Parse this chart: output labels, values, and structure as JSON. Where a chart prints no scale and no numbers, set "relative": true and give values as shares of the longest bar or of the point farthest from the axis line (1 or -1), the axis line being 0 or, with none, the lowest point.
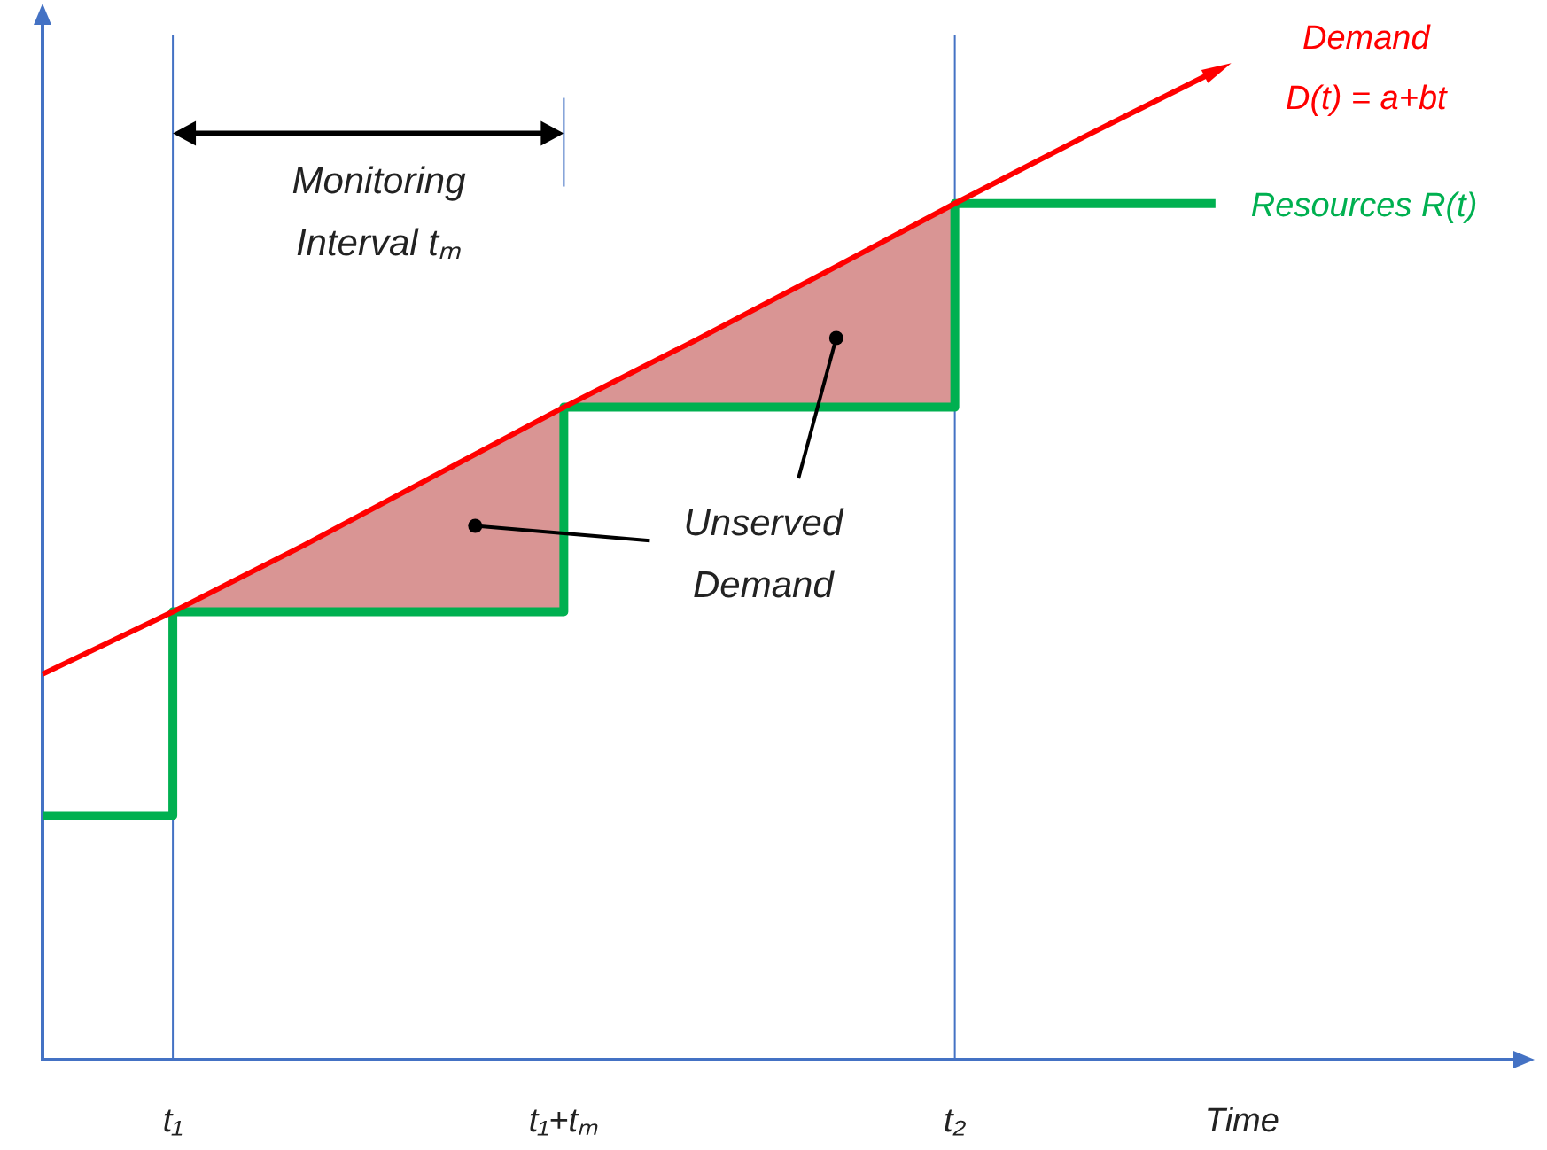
{
  "chart_data": {
    "type": "line",
    "relative": true,
    "xlabel": "Time",
    "categories": [
      null,
      "t₁",
      null,
      null,
      "t₁+tₘ",
      null,
      null,
      "t₂",
      null,
      null,
      null,
      null
    ],
    "series": [
      {
        "name": "Demand D(t) = a+bt",
        "type": "line",
        "color": "#ff0000",
        "values": [
          0.39,
          0.453,
          0.52,
          0.59,
          0.66,
          0.727,
          0.796,
          0.866,
          0.934,
          1,
          null,
          null
        ],
        "upper": [
          null,
          0.453,
          0.52,
          0.59,
          0.66,
          0.727,
          0.796,
          0.866,
          null,
          null,
          null,
          null
        ],
        "lower": [
          null,
          0.453,
          0.453,
          0.453,
          0.66,
          0.66,
          0.66,
          0.866,
          null,
          null,
          null,
          null
        ]
      },
      {
        "name": "Resources R(t)",
        "type": "step",
        "color": "#00b050",
        "values": [
          0.247,
          0.453,
          0.453,
          0.453,
          0.66,
          0.66,
          0.66,
          0.866,
          0.866,
          0.866,
          null,
          null
        ]
      }
    ],
    "ref_lines": [
      {
        "axis": "x",
        "value": "t₁",
        "color": "#4472c4"
      },
      {
        "axis": "x",
        "value": "t₂",
        "color": "#4472c4"
      }
    ],
    "annotations": [
      "Monitoring Interval tₘ",
      "Unserved Demand"
    ],
    "legend": false,
    "grid": false,
    "marker": "none"
  }
}
